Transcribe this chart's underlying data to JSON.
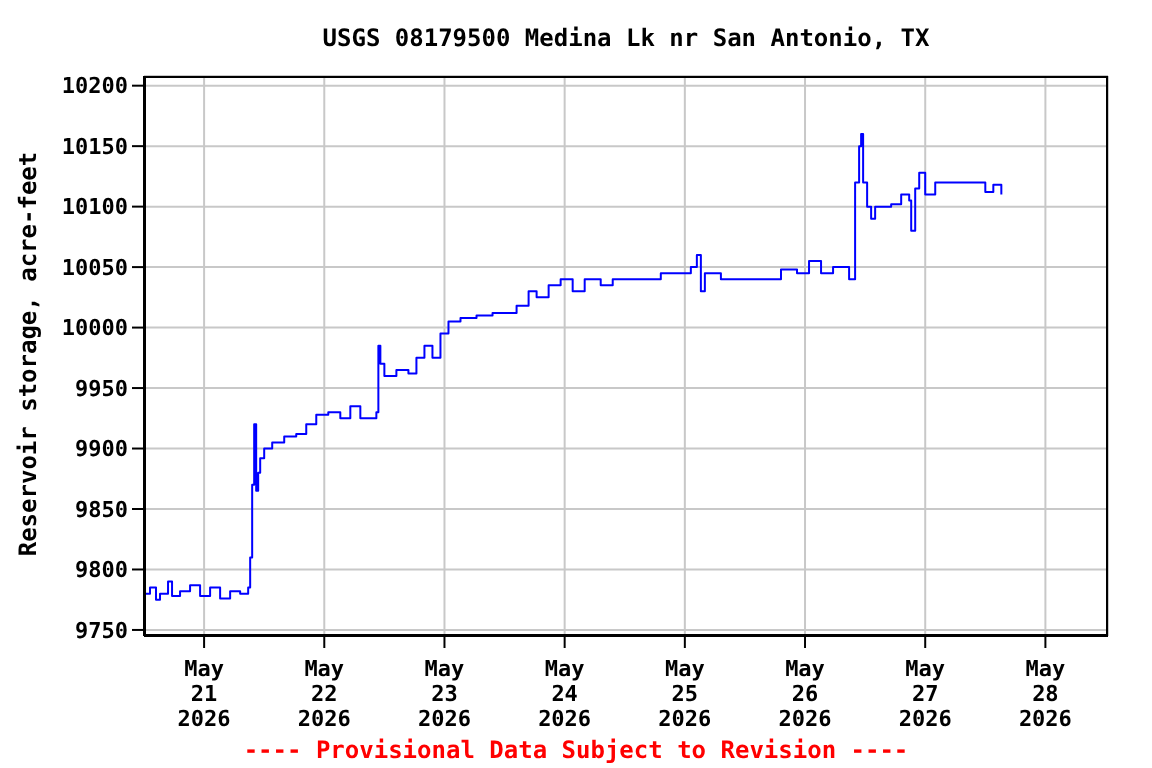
{
  "chart_data": {
    "type": "step",
    "title": "USGS 08179500 Medina Lk nr San Antonio, TX",
    "ylabel": "Reservoir storage, acre-feet",
    "annotations": [
      "---- Provisional Data Subject to Revision ----"
    ],
    "x": [
      "2026-05-20T12:00",
      "2026-05-20T13:12",
      "2026-05-20T14:24",
      "2026-05-20T15:12",
      "2026-05-20T16:48",
      "2026-05-20T17:36",
      "2026-05-20T19:12",
      "2026-05-20T21:12",
      "2026-05-20T23:12",
      "2026-05-21T01:12",
      "2026-05-21T03:12",
      "2026-05-21T05:12",
      "2026-05-21T07:12",
      "2026-05-21T08:48",
      "2026-05-21T09:12",
      "2026-05-21T09:36",
      "2026-05-21T10:00",
      "2026-05-21T10:24",
      "2026-05-21T10:48",
      "2026-05-21T11:12",
      "2026-05-21T12:00",
      "2026-05-21T13:36",
      "2026-05-21T16:00",
      "2026-05-21T18:24",
      "2026-05-21T20:24",
      "2026-05-21T22:24",
      "2026-05-22T00:48",
      "2026-05-22T03:12",
      "2026-05-22T05:12",
      "2026-05-22T07:12",
      "2026-05-22T10:24",
      "2026-05-22T10:48",
      "2026-05-22T11:12",
      "2026-05-22T12:00",
      "2026-05-22T14:24",
      "2026-05-22T16:48",
      "2026-05-22T18:24",
      "2026-05-22T20:00",
      "2026-05-22T21:36",
      "2026-05-22T23:12",
      "2026-05-23T00:48",
      "2026-05-23T03:12",
      "2026-05-23T06:24",
      "2026-05-23T09:36",
      "2026-05-23T14:24",
      "2026-05-23T16:48",
      "2026-05-23T18:24",
      "2026-05-23T20:48",
      "2026-05-23T23:12",
      "2026-05-24T01:36",
      "2026-05-24T04:00",
      "2026-05-24T07:12",
      "2026-05-24T09:36",
      "2026-05-24T15:12",
      "2026-05-24T19:12",
      "2026-05-25T01:12",
      "2026-05-25T02:24",
      "2026-05-25T03:12",
      "2026-05-25T04:00",
      "2026-05-25T07:12",
      "2026-05-25T17:12",
      "2026-05-25T19:12",
      "2026-05-25T22:24",
      "2026-05-26T00:48",
      "2026-05-26T03:12",
      "2026-05-26T05:36",
      "2026-05-26T08:48",
      "2026-05-26T10:00",
      "2026-05-26T10:48",
      "2026-05-26T11:12",
      "2026-05-26T11:36",
      "2026-05-26T12:24",
      "2026-05-26T13:12",
      "2026-05-26T14:00",
      "2026-05-26T17:12",
      "2026-05-26T19:12",
      "2026-05-26T20:48",
      "2026-05-26T21:12",
      "2026-05-26T22:00",
      "2026-05-26T22:48",
      "2026-05-27T00:00",
      "2026-05-27T02:00",
      "2026-05-27T11:12",
      "2026-05-27T12:00",
      "2026-05-27T13:36",
      "2026-05-27T15:12"
    ],
    "series": [
      {
        "color": "#0000ff",
        "values": [
          9780,
          9785,
          9775,
          9780,
          9790,
          9778,
          9782,
          9787,
          9778,
          9785,
          9776,
          9782,
          9780,
          9785,
          9810,
          9870,
          9920,
          9865,
          9880,
          9892,
          9900,
          9905,
          9910,
          9912,
          9920,
          9928,
          9930,
          9925,
          9935,
          9925,
          9930,
          9985,
          9970,
          9960,
          9965,
          9962,
          9975,
          9985,
          9975,
          9995,
          10005,
          10008,
          10010,
          10012,
          10018,
          10030,
          10025,
          10035,
          10040,
          10030,
          10040,
          10035,
          10040,
          10040,
          10045,
          10050,
          10060,
          10030,
          10045,
          10040,
          10040,
          10048,
          10045,
          10055,
          10045,
          10050,
          10040,
          10120,
          10150,
          10160,
          10120,
          10100,
          10090,
          10100,
          10102,
          10110,
          10105,
          10080,
          10115,
          10128,
          10110,
          10120,
          10120,
          10112,
          10118,
          10110
        ]
      }
    ],
    "xlim": [
      "2026-05-20T12:00",
      "2026-05-28T12:30"
    ],
    "xticks": [
      {
        "value": "2026-05-21",
        "label": "May 21 2026"
      },
      {
        "value": "2026-05-22",
        "label": "May 22 2026"
      },
      {
        "value": "2026-05-23",
        "label": "May 23 2026"
      },
      {
        "value": "2026-05-24",
        "label": "May 24 2026"
      },
      {
        "value": "2026-05-25",
        "label": "May 25 2026"
      },
      {
        "value": "2026-05-26",
        "label": "May 26 2026"
      },
      {
        "value": "2026-05-27",
        "label": "May 27 2026"
      },
      {
        "value": "2026-05-28",
        "label": "May 28 2026"
      }
    ],
    "ylim": [
      9745,
      10208
    ],
    "yticks": [
      9750,
      9800,
      9850,
      9900,
      9950,
      10000,
      10050,
      10100,
      10150,
      10200
    ],
    "grid": true,
    "marker": "none",
    "line_style": "solid"
  }
}
